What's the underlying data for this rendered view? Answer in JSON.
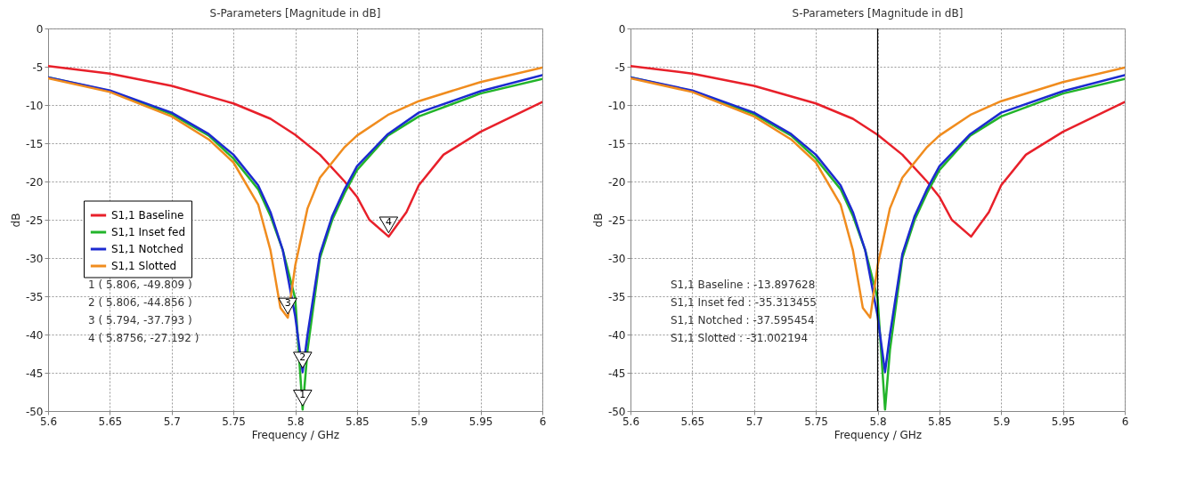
{
  "chart_data": [
    {
      "type": "line",
      "title": "S-Parameters [Magnitude in dB]",
      "xlabel": "Frequency / GHz",
      "ylabel": "dB",
      "xlim": [
        5.6,
        6
      ],
      "xticks": [
        5.6,
        5.65,
        5.7,
        5.75,
        5.8,
        5.85,
        5.9,
        5.95,
        6
      ],
      "ylim": [
        -50,
        0
      ],
      "yticks": [
        0,
        -5,
        -10,
        -15,
        -20,
        -25,
        -30,
        -35,
        -40,
        -45,
        -50
      ],
      "grid": true,
      "legend": "left",
      "line_style": "solid",
      "series": [
        {
          "name": "S1,1 Baseline",
          "color": "#e8202a",
          "x": [
            5.6,
            5.65,
            5.7,
            5.75,
            5.78,
            5.8,
            5.82,
            5.84,
            5.85,
            5.86,
            5.8756,
            5.89,
            5.9,
            5.92,
            5.95,
            6
          ],
          "values": [
            -4.9,
            -5.9,
            -7.5,
            -9.8,
            -11.8,
            -13.9,
            -16.5,
            -20,
            -22,
            -25,
            -27.2,
            -24,
            -20.5,
            -16.5,
            -13.5,
            -9.6
          ]
        },
        {
          "name": "S1,1 Inset fed",
          "color": "#22b42a",
          "x": [
            5.6,
            5.65,
            5.7,
            5.73,
            5.75,
            5.77,
            5.78,
            5.79,
            5.8,
            5.806,
            5.81,
            5.82,
            5.83,
            5.84,
            5.85,
            5.875,
            5.9,
            5.95,
            6
          ],
          "values": [
            -6.4,
            -8.2,
            -11.2,
            -14,
            -17,
            -21,
            -24.5,
            -29,
            -35.3,
            -49.8,
            -42,
            -30,
            -25,
            -21.5,
            -18.5,
            -14,
            -11.5,
            -8.5,
            -6.6
          ]
        },
        {
          "name": "S1,1 Notched",
          "color": "#1c2ad0",
          "x": [
            5.6,
            5.65,
            5.7,
            5.73,
            5.75,
            5.77,
            5.78,
            5.79,
            5.8,
            5.806,
            5.81,
            5.82,
            5.83,
            5.84,
            5.85,
            5.875,
            5.9,
            5.95,
            6
          ],
          "values": [
            -6.4,
            -8.1,
            -11,
            -13.8,
            -16.5,
            -20.5,
            -24,
            -29,
            -37.6,
            -44.9,
            -40,
            -29.5,
            -24.5,
            -21,
            -18,
            -13.8,
            -11,
            -8.2,
            -6.1
          ]
        },
        {
          "name": "S1,1 Slotted",
          "color": "#f08c1e",
          "x": [
            5.6,
            5.65,
            5.7,
            5.73,
            5.75,
            5.77,
            5.78,
            5.788,
            5.794,
            5.8,
            5.81,
            5.82,
            5.84,
            5.85,
            5.875,
            5.9,
            5.95,
            6
          ],
          "values": [
            -6.5,
            -8.3,
            -11.5,
            -14.5,
            -17.5,
            -23,
            -29,
            -36.5,
            -37.8,
            -31,
            -23.5,
            -19.5,
            -15.5,
            -14,
            -11.3,
            -9.5,
            -7,
            -5.1
          ]
        }
      ],
      "annotations": [
        {
          "text": "1",
          "x": 5.806,
          "y": -49.809
        },
        {
          "text": "2",
          "x": 5.806,
          "y": -44.856
        },
        {
          "text": "3",
          "x": 5.794,
          "y": -37.793
        },
        {
          "text": "4",
          "x": 5.8756,
          "y": -27.192
        },
        "1 ( 5.806, -49.809 )",
        "2 ( 5.806, -44.856 )",
        "3 ( 5.794, -37.793 )",
        "4 ( 5.8756, -27.192 )"
      ]
    },
    {
      "type": "line",
      "title": "S-Parameters [Magnitude in dB]",
      "xlabel": "Frequency / GHz",
      "ylabel": "dB",
      "xlim": [
        5.6,
        6
      ],
      "xticks": [
        5.6,
        5.65,
        5.7,
        5.75,
        5.8,
        5.85,
        5.9,
        5.95,
        6
      ],
      "ylim": [
        -50,
        0
      ],
      "yticks": [
        0,
        -5,
        -10,
        -15,
        -20,
        -25,
        -30,
        -35,
        -40,
        -45,
        -50
      ],
      "grid": true,
      "line_style": "solid",
      "series": [
        {
          "color": "#e8202a",
          "x": [
            5.6,
            5.65,
            5.7,
            5.75,
            5.78,
            5.8,
            5.82,
            5.84,
            5.85,
            5.86,
            5.8756,
            5.89,
            5.9,
            5.92,
            5.95,
            6
          ],
          "values": [
            -4.9,
            -5.9,
            -7.5,
            -9.8,
            -11.8,
            -13.9,
            -16.5,
            -20,
            -22,
            -25,
            -27.2,
            -24,
            -20.5,
            -16.5,
            -13.5,
            -9.6
          ]
        },
        {
          "color": "#22b42a",
          "x": [
            5.6,
            5.65,
            5.7,
            5.73,
            5.75,
            5.77,
            5.78,
            5.79,
            5.8,
            5.806,
            5.81,
            5.82,
            5.83,
            5.84,
            5.85,
            5.875,
            5.9,
            5.95,
            6
          ],
          "values": [
            -6.4,
            -8.2,
            -11.2,
            -14,
            -17,
            -21,
            -24.5,
            -29,
            -35.3,
            -49.8,
            -42,
            -30,
            -25,
            -21.5,
            -18.5,
            -14,
            -11.5,
            -8.5,
            -6.6
          ]
        },
        {
          "color": "#1c2ad0",
          "x": [
            5.6,
            5.65,
            5.7,
            5.73,
            5.75,
            5.77,
            5.78,
            5.79,
            5.8,
            5.806,
            5.81,
            5.82,
            5.83,
            5.84,
            5.85,
            5.875,
            5.9,
            5.95,
            6
          ],
          "values": [
            -6.4,
            -8.1,
            -11,
            -13.8,
            -16.5,
            -20.5,
            -24,
            -29,
            -37.6,
            -44.9,
            -40,
            -29.5,
            -24.5,
            -21,
            -18,
            -13.8,
            -11,
            -8.2,
            -6.1
          ]
        },
        {
          "color": "#f08c1e",
          "x": [
            5.6,
            5.65,
            5.7,
            5.73,
            5.75,
            5.77,
            5.78,
            5.788,
            5.794,
            5.8,
            5.81,
            5.82,
            5.84,
            5.85,
            5.875,
            5.9,
            5.95,
            6
          ],
          "values": [
            -6.5,
            -8.3,
            -11.5,
            -14.5,
            -17.5,
            -23,
            -29,
            -36.5,
            -37.8,
            -31,
            -23.5,
            -19.5,
            -15.5,
            -14,
            -11.3,
            -9.5,
            -7,
            -5.1
          ]
        }
      ],
      "ref_lines": [
        {
          "axis": "x",
          "value": 5.8,
          "color": "#000000"
        }
      ],
      "annotations": [
        "S1,1 Baseline : -13.897628",
        "S1,1 Inset fed : -35.313455",
        "S1,1 Notched : -37.595454",
        "S1,1 Slotted : -31.002194"
      ]
    }
  ]
}
